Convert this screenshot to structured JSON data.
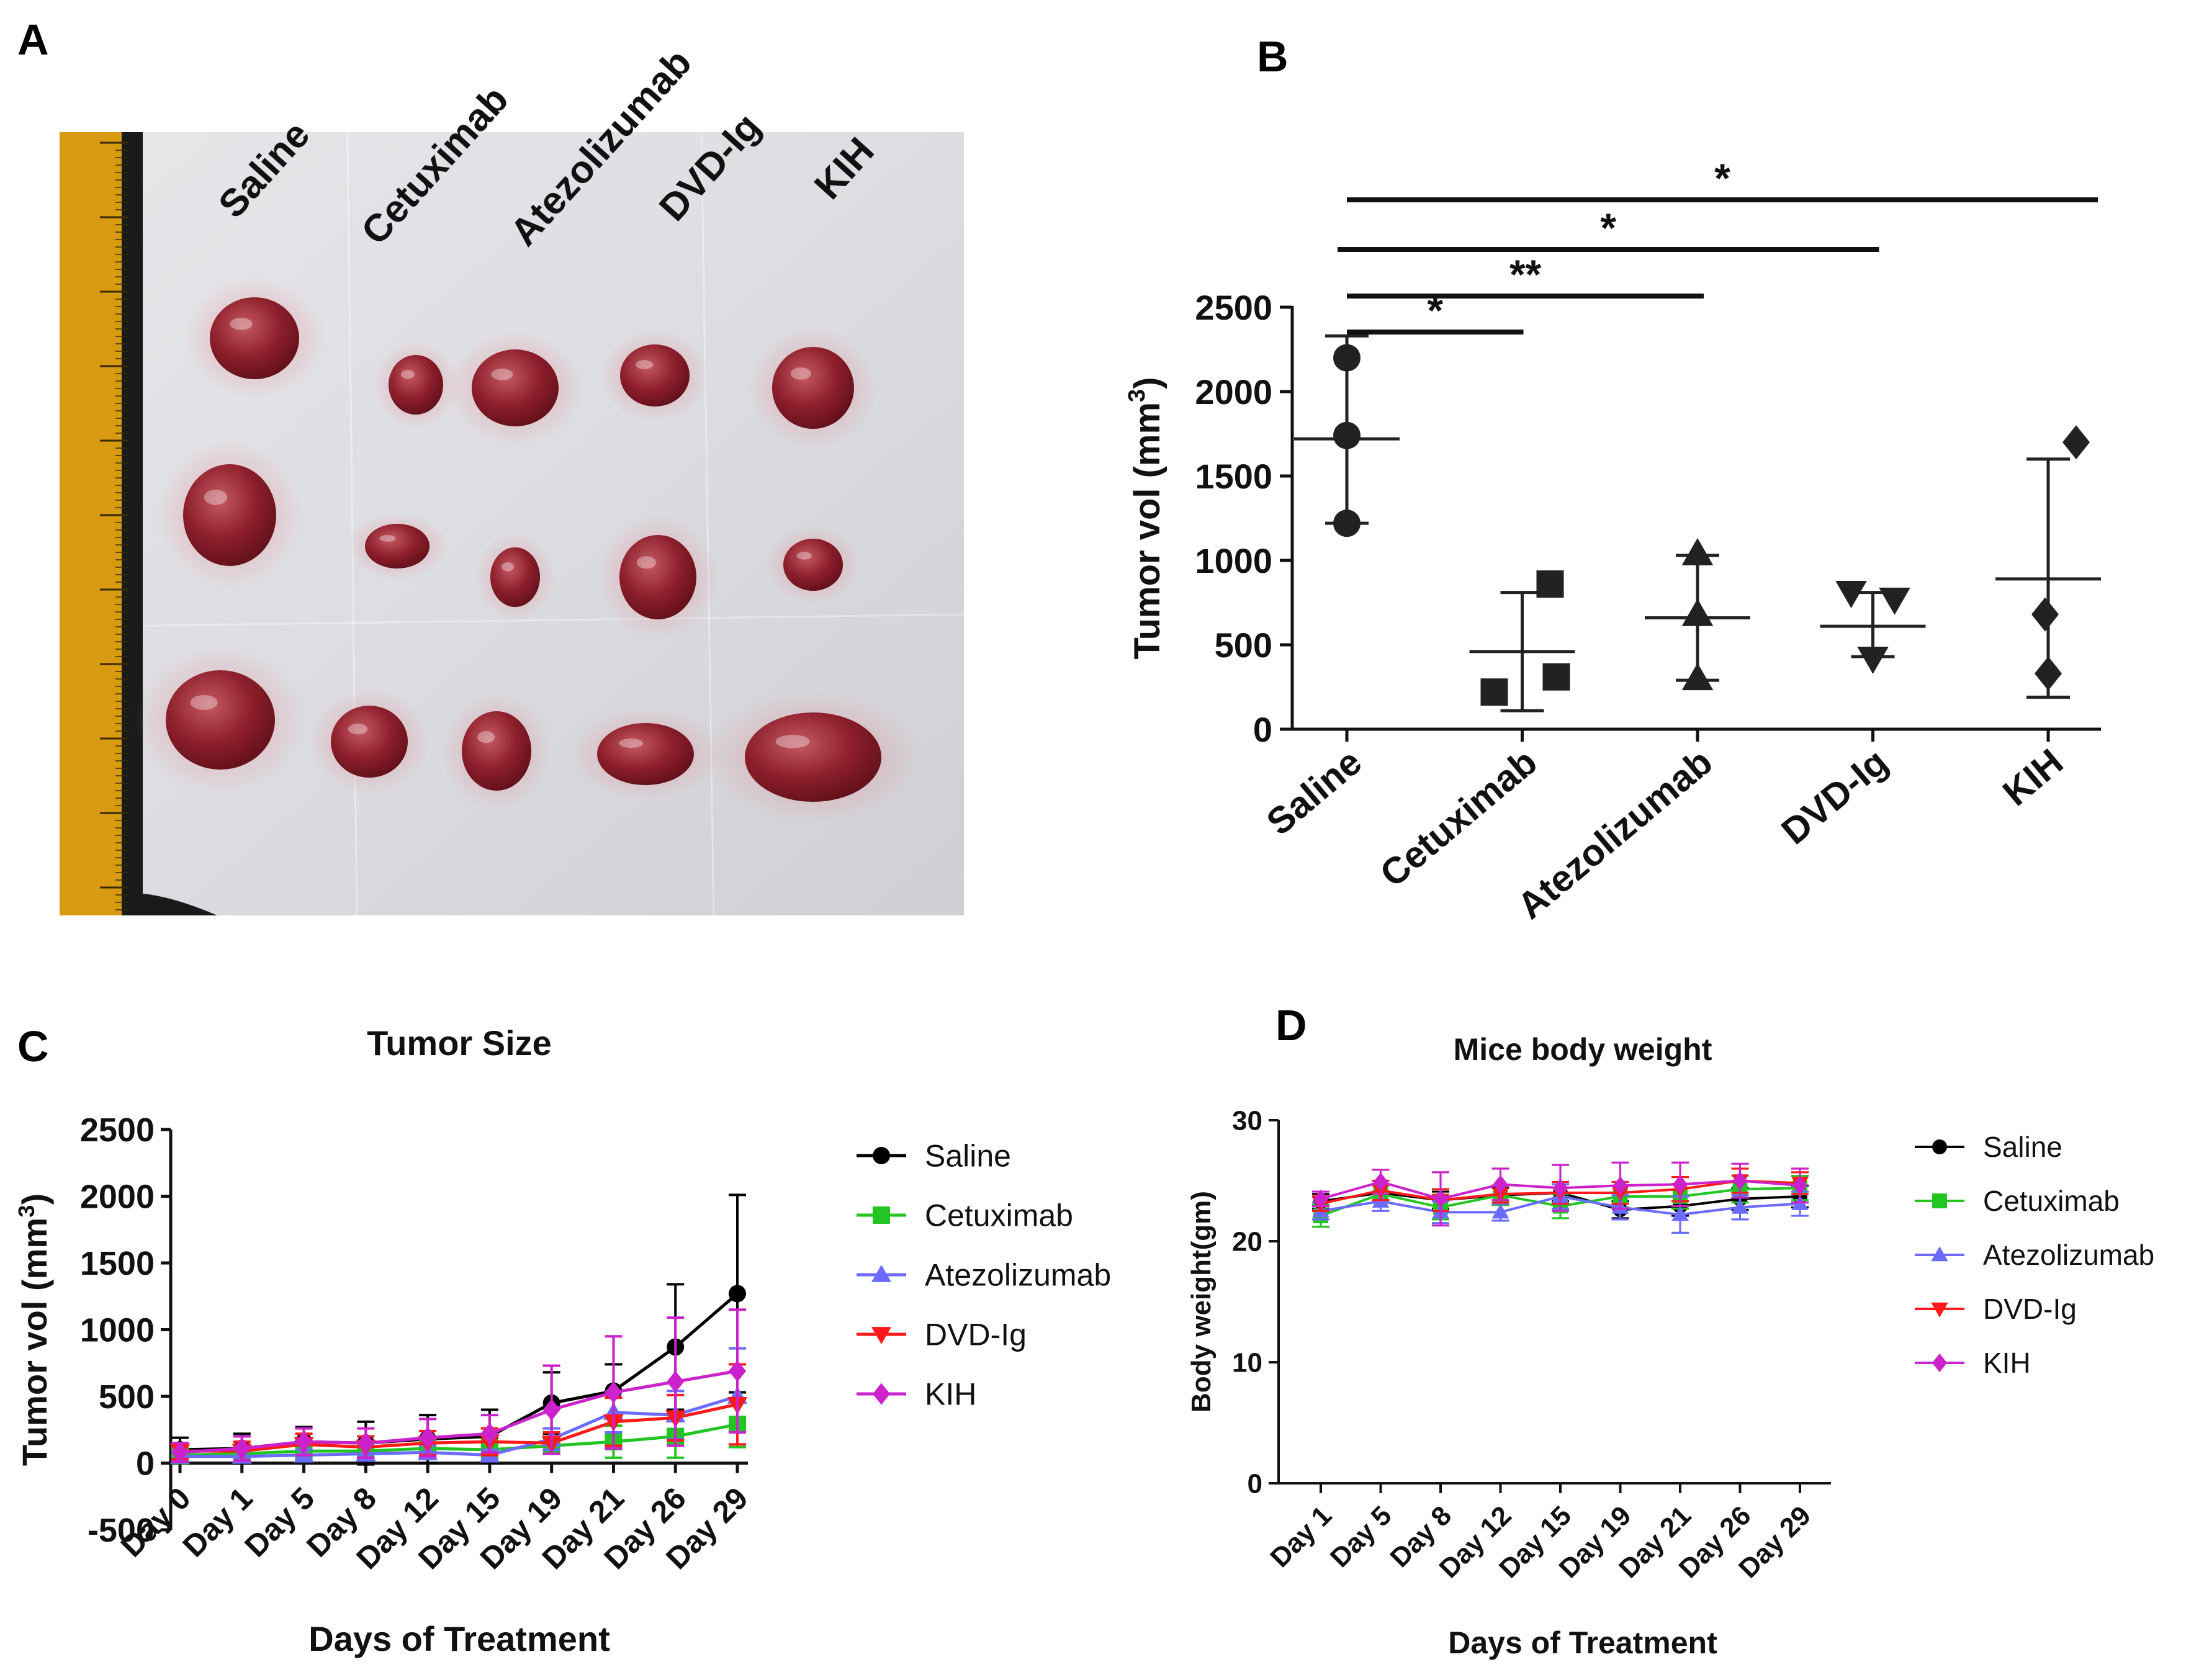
{
  "panels": {
    "a": "A",
    "b": "B",
    "c": "C",
    "d": "D"
  },
  "photo": {
    "labels": [
      "Saline",
      "Cetuximab",
      "Atezolizumab",
      "DVD-Ig",
      "KIH"
    ]
  },
  "colors": {
    "saline": "#000000",
    "cetuximab": "#22c522",
    "atezolizumab": "#6b6bff",
    "dvdig": "#ff1a1a",
    "kih": "#cc22cc",
    "panelB": "#222222",
    "tissue": "#8e1f2c"
  },
  "chart_data": [
    {
      "id": "B",
      "type": "scatter",
      "title": "",
      "xlabel": "",
      "ylabel": "Tumor vol (mm",
      "ylabel_sup": "3",
      "ylabel_end": ")",
      "ylim": [
        0,
        2500
      ],
      "yticks": [
        "0",
        "500",
        "1000",
        "1500",
        "2000",
        "2500"
      ],
      "categories": [
        "Saline",
        "Cetuximab",
        "Atezolizumab",
        "DVD-Ig",
        "KIH"
      ],
      "markers": [
        "circle",
        "square",
        "triangle-up",
        "triangle-down",
        "diamond"
      ],
      "points": [
        [
          2200,
          1740,
          1220
        ],
        [
          860,
          220,
          310
        ],
        [
          1040,
          680,
          300
        ],
        [
          810,
          770,
          420
        ],
        [
          1700,
          680,
          330
        ]
      ],
      "means": [
        1720,
        460,
        660,
        610,
        890
      ],
      "sd_high": [
        2330,
        810,
        1030,
        810,
        1600
      ],
      "sd_low": [
        1220,
        110,
        290,
        430,
        190
      ],
      "significance": [
        {
          "from": 0,
          "to": 1,
          "label": "*"
        },
        {
          "from": 0,
          "to": 2,
          "label": "**"
        },
        {
          "from": 0,
          "to": 3,
          "label": "*"
        },
        {
          "from": 0,
          "to": 4,
          "label": "*"
        }
      ]
    },
    {
      "id": "C",
      "type": "line",
      "title": "Tumor Size",
      "xlabel": "Days of Treatment",
      "ylabel": "Tumor vol (mm",
      "ylabel_sup": "3",
      "ylabel_end": ")",
      "ylim": [
        -500,
        2500
      ],
      "yticks": [
        "-500",
        "0",
        "500",
        "1000",
        "1500",
        "2000",
        "2500"
      ],
      "categories": [
        "Day 0",
        "Day 1",
        "Day 5",
        "Day 8",
        "Day 12",
        "Day 15",
        "Day 19",
        "Day 21",
        "Day 26",
        "Day 29"
      ],
      "legend_position": "right",
      "series": [
        {
          "name": "Saline",
          "marker": "circle",
          "values": [
            100,
            110,
            160,
            150,
            180,
            200,
            450,
            540,
            870,
            1270
          ],
          "err": [
            90,
            110,
            110,
            160,
            180,
            200,
            230,
            200,
            470,
            740
          ]
        },
        {
          "name": "Cetuximab",
          "marker": "square",
          "values": [
            60,
            70,
            90,
            90,
            110,
            100,
            130,
            160,
            200,
            290
          ],
          "err": [
            60,
            60,
            60,
            60,
            70,
            70,
            60,
            120,
            160,
            170
          ]
        },
        {
          "name": "Atezolizumab",
          "marker": "triangle-up",
          "values": [
            50,
            50,
            60,
            70,
            80,
            60,
            180,
            380,
            360,
            500
          ],
          "err": [
            40,
            40,
            40,
            50,
            50,
            40,
            80,
            150,
            180,
            360
          ]
        },
        {
          "name": "DVD-Ig",
          "marker": "triangle-down",
          "values": [
            90,
            90,
            140,
            120,
            150,
            160,
            150,
            310,
            340,
            440
          ],
          "err": [
            60,
            70,
            80,
            80,
            90,
            100,
            80,
            180,
            170,
            300
          ]
        },
        {
          "name": "KIH",
          "marker": "diamond",
          "values": [
            80,
            110,
            160,
            150,
            190,
            220,
            400,
            530,
            610,
            690
          ],
          "err": [
            70,
            90,
            100,
            110,
            140,
            140,
            330,
            420,
            480,
            460
          ]
        }
      ]
    },
    {
      "id": "D",
      "type": "line",
      "title": "Mice body weight",
      "xlabel": "Days of Treatment",
      "ylabel": "Body weight(gm)",
      "ylim": [
        0,
        30
      ],
      "yticks": [
        "0",
        "10",
        "20",
        "30"
      ],
      "categories": [
        "Day 1",
        "Day 5",
        "Day 8",
        "Day 12",
        "Day 15",
        "Day 19",
        "Day 21",
        "Day 26",
        "Day 29"
      ],
      "legend_position": "right",
      "series": [
        {
          "name": "Saline",
          "marker": "circle",
          "values": [
            23.3,
            24.0,
            23.4,
            23.8,
            24.0,
            22.6,
            22.9,
            23.5,
            23.7
          ],
          "err": [
            0.6,
            0.6,
            0.7,
            0.6,
            0.7,
            0.7,
            0.8,
            0.9,
            0.9
          ]
        },
        {
          "name": "Cetuximab",
          "marker": "square",
          "values": [
            22.1,
            23.9,
            22.8,
            23.8,
            22.9,
            23.7,
            23.7,
            24.3,
            24.4
          ],
          "err": [
            0.9,
            0.7,
            1.0,
            0.8,
            1.0,
            0.9,
            1.0,
            1.1,
            1.0
          ]
        },
        {
          "name": "Atezolizumab",
          "marker": "triangle-up",
          "values": [
            22.5,
            23.3,
            22.4,
            22.4,
            23.7,
            22.8,
            22.2,
            22.8,
            23.1
          ],
          "err": [
            0.7,
            0.8,
            0.9,
            0.7,
            1.0,
            1.0,
            1.5,
            1.0,
            1.0
          ]
        },
        {
          "name": "DVD-Ig",
          "marker": "triangle-down",
          "values": [
            23.1,
            24.2,
            23.4,
            23.9,
            24.0,
            24.0,
            24.3,
            25.0,
            24.8
          ],
          "err": [
            0.6,
            0.8,
            0.9,
            0.7,
            0.9,
            0.9,
            1.0,
            1.0,
            0.9
          ]
        },
        {
          "name": "KIH",
          "marker": "diamond",
          "values": [
            23.5,
            24.9,
            23.5,
            24.7,
            24.4,
            24.6,
            24.7,
            25.0,
            24.6
          ],
          "err": [
            0.6,
            1.0,
            2.2,
            1.3,
            1.9,
            1.9,
            1.8,
            1.4,
            1.4
          ]
        }
      ]
    }
  ]
}
